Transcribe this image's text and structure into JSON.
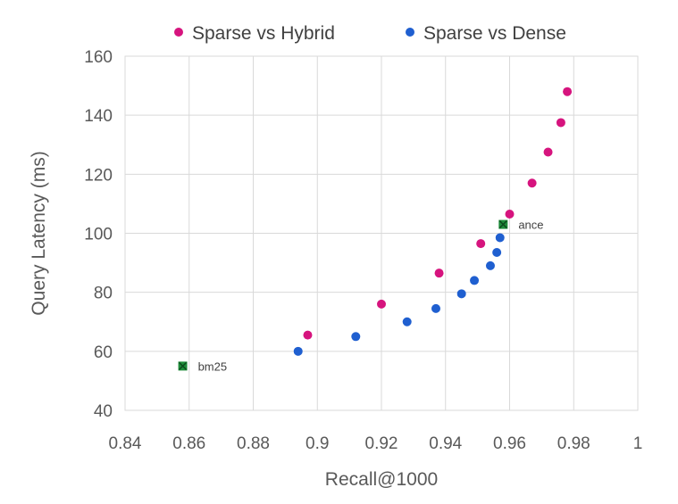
{
  "chart_data": {
    "type": "scatter",
    "title": "",
    "xlabel": "Recall@1000",
    "ylabel": "Query Latency (ms)",
    "xlim": [
      0.84,
      1.0
    ],
    "ylim": [
      40,
      160
    ],
    "xticks": [
      "0.84",
      "0.86",
      "0.88",
      "0.9",
      "0.92",
      "0.94",
      "0.96",
      "0.98",
      "1"
    ],
    "yticks": [
      "40",
      "60",
      "80",
      "100",
      "120",
      "140",
      "160"
    ],
    "grid": true,
    "legend_position": "top",
    "series": [
      {
        "name": "Sparse vs Hybrid",
        "color": "#D6147E",
        "points": [
          [
            0.897,
            65.5
          ],
          [
            0.92,
            76
          ],
          [
            0.938,
            86.5
          ],
          [
            0.951,
            96.5
          ],
          [
            0.96,
            106.5
          ],
          [
            0.967,
            117
          ],
          [
            0.972,
            127.5
          ],
          [
            0.976,
            137.5
          ],
          [
            0.978,
            148
          ]
        ]
      },
      {
        "name": "Sparse vs Dense",
        "color": "#1F5FD0",
        "points": [
          [
            0.894,
            60
          ],
          [
            0.912,
            65
          ],
          [
            0.928,
            70
          ],
          [
            0.937,
            74.5
          ],
          [
            0.945,
            79.5
          ],
          [
            0.949,
            84
          ],
          [
            0.954,
            89
          ],
          [
            0.956,
            93.5
          ],
          [
            0.957,
            98.5
          ]
        ]
      }
    ],
    "annotations": [
      {
        "label": "bm25",
        "x": 0.858,
        "y": 55,
        "color": "#1E8C3A"
      },
      {
        "label": "ance",
        "x": 0.958,
        "y": 103,
        "color": "#1E8C3A"
      }
    ]
  }
}
